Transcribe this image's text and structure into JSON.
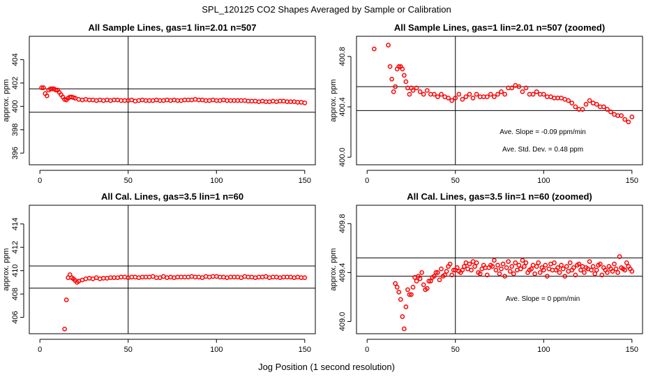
{
  "figure": {
    "title": "SPL_120125  CO2 Shapes Averaged by Sample or Calibration",
    "xlabel": "Jog Position (1 second resolution)"
  },
  "chart_data": [
    {
      "type": "scatter",
      "title": "All Sample Lines, gas=1 lin=2.01 n=507",
      "xlabel": "",
      "ylabel": "approx. ppm",
      "xlim": [
        -6,
        156
      ],
      "ylim": [
        395,
        406
      ],
      "xticks": [
        0,
        50,
        100,
        150
      ],
      "yticks": [
        396,
        398,
        400,
        402,
        404
      ],
      "vline": 50,
      "hlines": [
        401.5,
        399.5
      ],
      "annotations": [],
      "x": [
        1,
        2,
        3,
        4,
        5,
        6,
        7,
        8,
        9,
        10,
        11,
        12,
        13,
        14,
        15,
        16,
        17,
        18,
        19,
        20,
        22,
        24,
        26,
        28,
        30,
        32,
        34,
        36,
        38,
        40,
        42,
        44,
        46,
        48,
        50,
        52,
        54,
        56,
        58,
        60,
        62,
        64,
        66,
        68,
        70,
        72,
        74,
        76,
        78,
        80,
        82,
        84,
        86,
        88,
        90,
        92,
        94,
        96,
        98,
        100,
        102,
        104,
        106,
        108,
        110,
        112,
        114,
        116,
        118,
        120,
        122,
        124,
        126,
        128,
        130,
        132,
        134,
        136,
        138,
        140,
        142,
        144,
        146,
        148,
        150
      ],
      "y": [
        401.6,
        401.6,
        401.1,
        400.9,
        401.4,
        401.5,
        401.5,
        401.5,
        401.4,
        401.4,
        401.2,
        401.0,
        400.8,
        400.6,
        400.55,
        400.7,
        400.8,
        400.8,
        400.75,
        400.7,
        400.6,
        400.55,
        400.6,
        400.55,
        400.55,
        400.5,
        400.55,
        400.5,
        400.55,
        400.5,
        400.55,
        400.55,
        400.5,
        400.5,
        400.5,
        400.55,
        400.45,
        400.5,
        400.55,
        400.5,
        400.5,
        400.5,
        400.55,
        400.5,
        400.5,
        400.55,
        400.5,
        400.55,
        400.5,
        400.5,
        400.55,
        400.55,
        400.55,
        400.6,
        400.55,
        400.55,
        400.5,
        400.5,
        400.55,
        400.5,
        400.5,
        400.55,
        400.5,
        400.5,
        400.5,
        400.5,
        400.5,
        400.5,
        400.45,
        400.45,
        400.45,
        400.4,
        400.45,
        400.4,
        400.4,
        400.45,
        400.4,
        400.45,
        400.45,
        400.4,
        400.4,
        400.4,
        400.35,
        400.35,
        400.3
      ]
    },
    {
      "type": "scatter",
      "title": "All Sample Lines, gas=1 lin=2.01 n=507 (zoomed)",
      "xlabel": "",
      "ylabel": "approx. ppm",
      "xlim": [
        -6,
        156
      ],
      "ylim": [
        399.94,
        400.96
      ],
      "xticks": [
        0,
        50,
        100,
        150
      ],
      "yticks": [
        400.0,
        400.4,
        400.8
      ],
      "vline": 50,
      "hlines": [
        400.56,
        400.37
      ],
      "annotations": [
        "Ave. Slope =  -0.09  ppm/min",
        "Ave. Std. Dev. =  0.48  ppm"
      ],
      "x": [
        4,
        12,
        13,
        14,
        15,
        16,
        17,
        18,
        19,
        20,
        21,
        22,
        23,
        24,
        25,
        26,
        28,
        30,
        32,
        34,
        36,
        38,
        40,
        42,
        44,
        46,
        48,
        50,
        52,
        54,
        56,
        58,
        60,
        62,
        64,
        66,
        68,
        70,
        72,
        74,
        76,
        78,
        80,
        82,
        84,
        86,
        88,
        90,
        92,
        94,
        96,
        98,
        100,
        102,
        104,
        106,
        108,
        110,
        112,
        114,
        116,
        118,
        120,
        122,
        124,
        126,
        128,
        130,
        132,
        134,
        136,
        138,
        140,
        142,
        144,
        146,
        148,
        150
      ],
      "y": [
        400.86,
        400.89,
        400.72,
        400.62,
        400.52,
        400.56,
        400.7,
        400.72,
        400.72,
        400.7,
        400.65,
        400.6,
        400.55,
        400.5,
        400.55,
        400.53,
        400.55,
        400.52,
        400.5,
        400.53,
        400.5,
        400.5,
        400.48,
        400.5,
        400.48,
        400.47,
        400.45,
        400.47,
        400.5,
        400.46,
        400.48,
        400.5,
        400.47,
        400.5,
        400.48,
        400.48,
        400.48,
        400.5,
        400.48,
        400.5,
        400.52,
        400.5,
        400.55,
        400.55,
        400.57,
        400.56,
        400.52,
        400.55,
        400.5,
        400.5,
        400.52,
        400.5,
        400.5,
        400.48,
        400.48,
        400.47,
        400.47,
        400.47,
        400.46,
        400.45,
        400.43,
        400.4,
        400.38,
        400.38,
        400.42,
        400.45,
        400.43,
        400.42,
        400.4,
        400.4,
        400.38,
        400.36,
        400.34,
        400.33,
        400.33,
        400.3,
        400.28,
        400.32
      ]
    },
    {
      "type": "scatter",
      "title": "All Cal. Lines, gas=3.5 lin=1 n=60",
      "xlabel": "",
      "ylabel": "approx. ppm",
      "xlim": [
        -6,
        156
      ],
      "ylim": [
        404.6,
        415.6
      ],
      "xticks": [
        0,
        50,
        100,
        150
      ],
      "yticks": [
        406,
        408,
        410,
        412,
        414
      ],
      "vline": 50,
      "hlines": [
        410.4,
        408.5
      ],
      "annotations": [],
      "x": [
        14,
        15,
        16,
        17,
        18,
        19,
        20,
        21,
        22,
        24,
        26,
        28,
        30,
        32,
        34,
        36,
        38,
        40,
        42,
        44,
        46,
        48,
        50,
        52,
        54,
        56,
        58,
        60,
        62,
        64,
        66,
        68,
        70,
        72,
        74,
        76,
        78,
        80,
        82,
        84,
        86,
        88,
        90,
        92,
        94,
        96,
        98,
        100,
        102,
        104,
        106,
        108,
        110,
        112,
        114,
        116,
        118,
        120,
        122,
        124,
        126,
        128,
        130,
        132,
        134,
        136,
        138,
        140,
        142,
        144,
        146,
        148,
        150
      ],
      "y": [
        405.0,
        407.5,
        409.4,
        409.65,
        409.4,
        409.3,
        409.15,
        409.0,
        409.1,
        409.2,
        409.3,
        409.35,
        409.3,
        409.4,
        409.3,
        409.35,
        409.35,
        409.4,
        409.4,
        409.4,
        409.45,
        409.45,
        409.4,
        409.45,
        409.45,
        409.4,
        409.45,
        409.45,
        409.45,
        409.5,
        409.4,
        409.4,
        409.5,
        409.4,
        409.45,
        409.4,
        409.45,
        409.45,
        409.45,
        409.45,
        409.5,
        409.45,
        409.45,
        409.4,
        409.5,
        409.45,
        409.5,
        409.5,
        409.45,
        409.45,
        409.4,
        409.45,
        409.45,
        409.45,
        409.4,
        409.5,
        409.45,
        409.45,
        409.4,
        409.45,
        409.45,
        409.5,
        409.4,
        409.45,
        409.45,
        409.4,
        409.45,
        409.45,
        409.45,
        409.4,
        409.45,
        409.4,
        409.4
      ]
    },
    {
      "type": "scatter",
      "title": "All Cal. Lines, gas=3.5 lin=1 n=60 (zoomed)",
      "xlabel": "",
      "ylabel": "approx. ppm",
      "xlim": [
        -6,
        156
      ],
      "ylim": [
        408.9,
        409.95
      ],
      "xticks": [
        0,
        50,
        100,
        150
      ],
      "yticks": [
        409.0,
        409.4,
        409.8
      ],
      "vline": 50,
      "hlines": [
        409.52,
        409.37
      ],
      "annotations": [
        "Ave. Slope =  0  ppm/min"
      ],
      "x": [
        16,
        17,
        18,
        19,
        20,
        21,
        22,
        23,
        24,
        25,
        26,
        27,
        28,
        29,
        30,
        31,
        32,
        33,
        34,
        35,
        36,
        37,
        38,
        39,
        40,
        41,
        42,
        43,
        44,
        45,
        46,
        47,
        48,
        49,
        50,
        51,
        52,
        53,
        54,
        55,
        56,
        57,
        58,
        59,
        60,
        61,
        62,
        63,
        64,
        65,
        66,
        67,
        68,
        69,
        70,
        71,
        72,
        73,
        74,
        75,
        76,
        77,
        78,
        79,
        80,
        81,
        82,
        83,
        84,
        85,
        86,
        87,
        88,
        89,
        90,
        91,
        92,
        93,
        94,
        95,
        96,
        97,
        98,
        99,
        100,
        101,
        102,
        103,
        104,
        105,
        106,
        107,
        108,
        109,
        110,
        111,
        112,
        113,
        114,
        115,
        116,
        117,
        118,
        119,
        120,
        121,
        122,
        123,
        124,
        125,
        126,
        127,
        128,
        129,
        130,
        131,
        132,
        133,
        134,
        135,
        136,
        137,
        138,
        139,
        140,
        141,
        142,
        143,
        144,
        145,
        146,
        147,
        148,
        149,
        150
      ],
      "y": [
        409.31,
        409.28,
        409.24,
        409.18,
        409.04,
        408.94,
        409.12,
        409.26,
        409.22,
        409.22,
        409.28,
        409.36,
        409.33,
        409.37,
        409.35,
        409.4,
        409.3,
        409.26,
        409.27,
        409.33,
        409.33,
        409.36,
        409.37,
        409.4,
        409.4,
        409.34,
        409.43,
        409.37,
        409.38,
        409.41,
        409.45,
        409.47,
        409.38,
        409.42,
        409.42,
        409.44,
        409.41,
        409.4,
        409.42,
        409.45,
        409.48,
        409.43,
        409.47,
        409.42,
        409.49,
        409.45,
        409.48,
        409.4,
        409.39,
        409.43,
        409.46,
        409.44,
        409.38,
        409.44,
        409.46,
        409.45,
        409.5,
        409.42,
        409.46,
        409.39,
        409.43,
        409.47,
        409.37,
        409.44,
        409.49,
        409.41,
        409.45,
        409.39,
        409.48,
        409.42,
        409.46,
        409.43,
        409.5,
        409.45,
        409.48,
        409.4,
        409.42,
        409.43,
        409.46,
        409.39,
        409.45,
        409.48,
        409.4,
        409.44,
        409.42,
        409.46,
        409.37,
        409.43,
        409.47,
        409.42,
        409.48,
        409.42,
        409.44,
        409.4,
        409.46,
        409.43,
        409.37,
        409.45,
        409.41,
        409.48,
        409.42,
        409.44,
        409.38,
        409.46,
        409.47,
        409.42,
        409.45,
        409.4,
        409.44,
        409.43,
        409.49,
        409.42,
        409.45,
        409.39,
        409.42,
        409.46,
        409.47,
        409.38,
        409.44,
        409.42,
        409.4,
        409.45,
        409.43,
        409.41,
        409.47,
        409.43,
        409.4,
        409.53,
        409.44,
        409.43,
        409.42,
        409.48,
        409.45,
        409.43,
        409.41
      ]
    }
  ]
}
